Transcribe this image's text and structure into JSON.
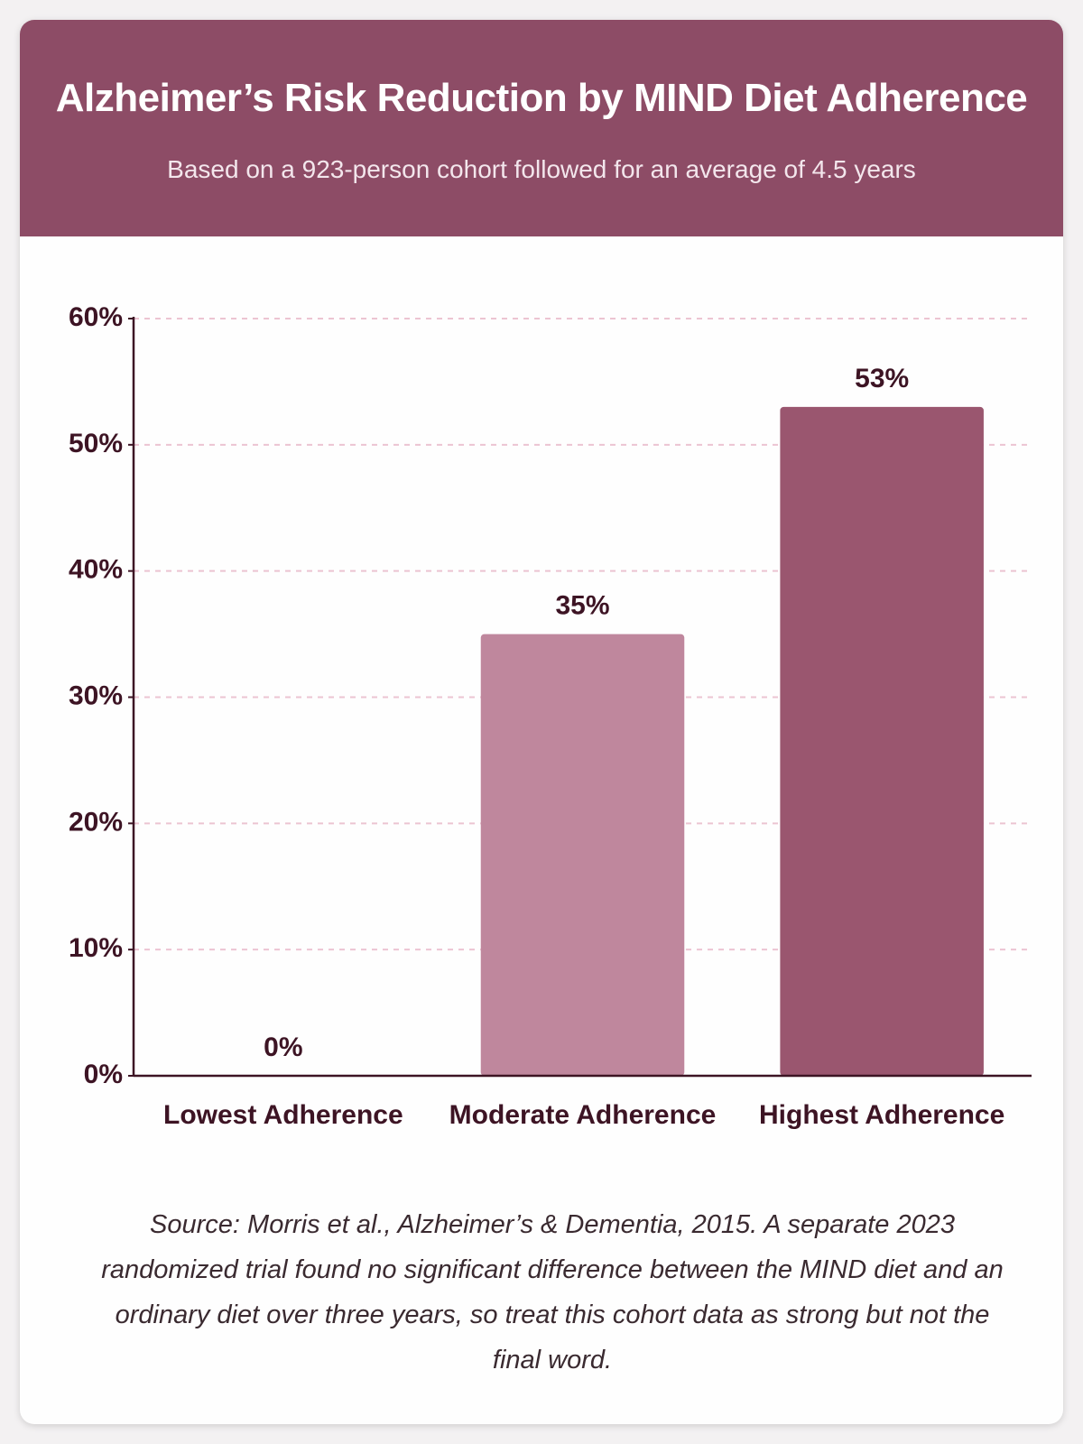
{
  "chart_data": {
    "type": "bar",
    "title": "Alzheimer’s Risk Reduction by MIND Diet Adherence",
    "subtitle": "Based on a 923-person cohort followed for an average of 4.5 years",
    "categories": [
      "Lowest Adherence",
      "Moderate Adherence",
      "Highest Adherence"
    ],
    "values": [
      0,
      35,
      53
    ],
    "value_labels": [
      "0%",
      "35%",
      "53%"
    ],
    "colors": [
      "#bf879d",
      "#bf879d",
      "#9a566f"
    ],
    "ylim": [
      0,
      60
    ],
    "yticks": [
      {
        "value": 0,
        "label": "0%"
      },
      {
        "value": 10,
        "label": "10%"
      },
      {
        "value": 20,
        "label": "20%"
      },
      {
        "value": 30,
        "label": "30%"
      },
      {
        "value": 40,
        "label": "40%"
      },
      {
        "value": 50,
        "label": "50%"
      },
      {
        "value": 60,
        "label": "60%"
      }
    ],
    "grid": true,
    "footnote": "Source: Morris et al., Alzheimer’s & Dementia, 2015. A separate 2023 randomized trial found no significant difference between the MIND diet and an ordinary diet over three years, so treat this cohort data as strong but not the final word."
  }
}
